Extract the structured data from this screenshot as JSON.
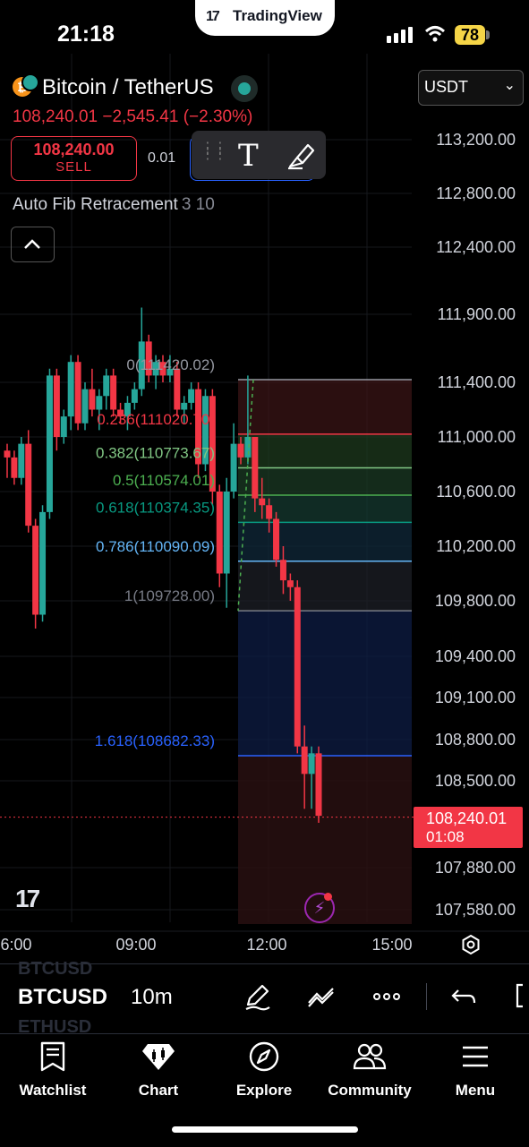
{
  "status_bar": {
    "time": "21:18",
    "app_pill": "TradingView",
    "app_logo": "17",
    "battery": "78"
  },
  "header": {
    "title": "Bitcoin / TetherUS",
    "price_line": "108,240.01 −2,545.41 (−2.30%)",
    "sell_price": "108,240.00",
    "sell_label": "SELL",
    "spread": "0.01",
    "currency": "USDT",
    "indicator_name": "Auto Fib Retracement",
    "indicator_params": "3 10"
  },
  "colors": {
    "up": "#26a69a",
    "down": "#f23645",
    "background": "#000000"
  },
  "chart_data": {
    "type": "candlestick",
    "symbol": "BTCUSDT",
    "interval": "10m",
    "y_ticks": [
      "113,200.00",
      "112,800.00",
      "112,400.00",
      "111,900.00",
      "111,400.00",
      "111,000.00",
      "110,600.00",
      "110,200.00",
      "109,800.00",
      "109,400.00",
      "109,100.00",
      "108,800.00",
      "108,500.00",
      "107,880.00",
      "107,580.00"
    ],
    "y_tick_values": [
      113200,
      112800,
      112400,
      111900,
      111400,
      111000,
      110600,
      110200,
      109800,
      109400,
      109100,
      108800,
      108500,
      107880,
      107580
    ],
    "x_ticks": [
      "6:00",
      "09:00",
      "12:00",
      "15:00"
    ],
    "last_price": "108,240.01",
    "countdown": "01:08",
    "fib_levels": [
      {
        "ratio": "0",
        "value": "111420.02",
        "label": "0(111420.02)",
        "color": "#9598a1"
      },
      {
        "ratio": "0.236",
        "value": "111020.70",
        "label": "0.236(111020.70)",
        "color": "#f23645"
      },
      {
        "ratio": "0.382",
        "value": "110773.67",
        "label": "0.382(110773.67)",
        "color": "#81c784"
      },
      {
        "ratio": "0.5",
        "value": "110574.01",
        "label": "0.5(110574.01)",
        "color": "#4caf50"
      },
      {
        "ratio": "0.618",
        "value": "110374.35",
        "label": "0.618(110374.35)",
        "color": "#089981"
      },
      {
        "ratio": "0.786",
        "value": "110090.09",
        "label": "0.786(110090.09)",
        "color": "#64b5f6"
      },
      {
        "ratio": "1",
        "value": "109728.00",
        "label": "1(109728.00)",
        "color": "#787b86"
      },
      {
        "ratio": "1.618",
        "value": "108682.33",
        "label": "1.618(108682.33)",
        "color": "#2962ff"
      }
    ],
    "candles": [
      [
        110900,
        110950,
        110700,
        110850
      ],
      [
        110850,
        110900,
        110650,
        110700
      ],
      [
        110700,
        111000,
        110650,
        110950
      ],
      [
        110950,
        111050,
        110300,
        110350
      ],
      [
        110350,
        110400,
        109600,
        109700
      ],
      [
        109700,
        110500,
        109650,
        110450
      ],
      [
        110450,
        111500,
        110400,
        111450
      ],
      [
        111450,
        111500,
        110900,
        111000
      ],
      [
        111000,
        111200,
        110950,
        111150
      ],
      [
        111150,
        111600,
        111050,
        111550
      ],
      [
        111550,
        111600,
        111050,
        111100
      ],
      [
        111100,
        111400,
        111050,
        111350
      ],
      [
        111350,
        111500,
        111150,
        111200
      ],
      [
        111200,
        111350,
        111050,
        111300
      ],
      [
        111300,
        111500,
        111200,
        111450
      ],
      [
        111450,
        111500,
        111150,
        111200
      ],
      [
        111200,
        111250,
        111100,
        111150
      ],
      [
        111150,
        111300,
        111050,
        111250
      ],
      [
        111250,
        111400,
        111200,
        111350
      ],
      [
        111350,
        111950,
        111300,
        111700
      ],
      [
        111700,
        111750,
        111400,
        111450
      ],
      [
        111450,
        111600,
        111350,
        111550
      ],
      [
        111550,
        111600,
        111400,
        111450
      ],
      [
        111450,
        111600,
        111400,
        111500
      ],
      [
        111500,
        111550,
        111150,
        111200
      ],
      [
        111200,
        111300,
        111100,
        111250
      ],
      [
        111250,
        111400,
        111200,
        111350
      ],
      [
        111350,
        111400,
        110700,
        110800
      ],
      [
        110800,
        111350,
        110750,
        111300
      ],
      [
        111300,
        111350,
        110500,
        110600
      ],
      [
        110600,
        110650,
        109900,
        110000
      ],
      [
        110000,
        110700,
        109750,
        110600
      ],
      [
        110600,
        111100,
        110550,
        110950
      ],
      [
        110950,
        111000,
        110800,
        110850
      ],
      [
        110850,
        111450,
        110800,
        111000
      ],
      [
        111000,
        111000,
        110450,
        110550
      ],
      [
        110550,
        110700,
        110400,
        110500
      ],
      [
        110500,
        110550,
        110300,
        110400
      ],
      [
        110400,
        110450,
        110050,
        110100
      ],
      [
        110100,
        110200,
        109850,
        109950
      ],
      [
        109950,
        110000,
        109800,
        109900
      ],
      [
        109900,
        109950,
        108700,
        108750
      ],
      [
        108750,
        108900,
        108300,
        108550
      ],
      [
        108550,
        108750,
        108300,
        108700
      ],
      [
        108700,
        108750,
        108200,
        108250
      ]
    ]
  },
  "toolbar": {
    "symbol_prev": "BTCUSD",
    "symbol_current": "BTCUSD",
    "symbol_next": "ETHUSD",
    "interval": "10m",
    "icons": [
      "draw-pencil-icon",
      "line-tools-icon",
      "more-icon",
      "undo-icon",
      "fullscreen-icon"
    ]
  },
  "tabs": [
    {
      "label": "Watchlist",
      "icon": "watchlist-icon"
    },
    {
      "label": "Chart",
      "icon": "chart-icon"
    },
    {
      "label": "Explore",
      "icon": "compass-icon"
    },
    {
      "label": "Community",
      "icon": "community-icon"
    },
    {
      "label": "Menu",
      "icon": "menu-icon"
    }
  ],
  "watermark": "17"
}
